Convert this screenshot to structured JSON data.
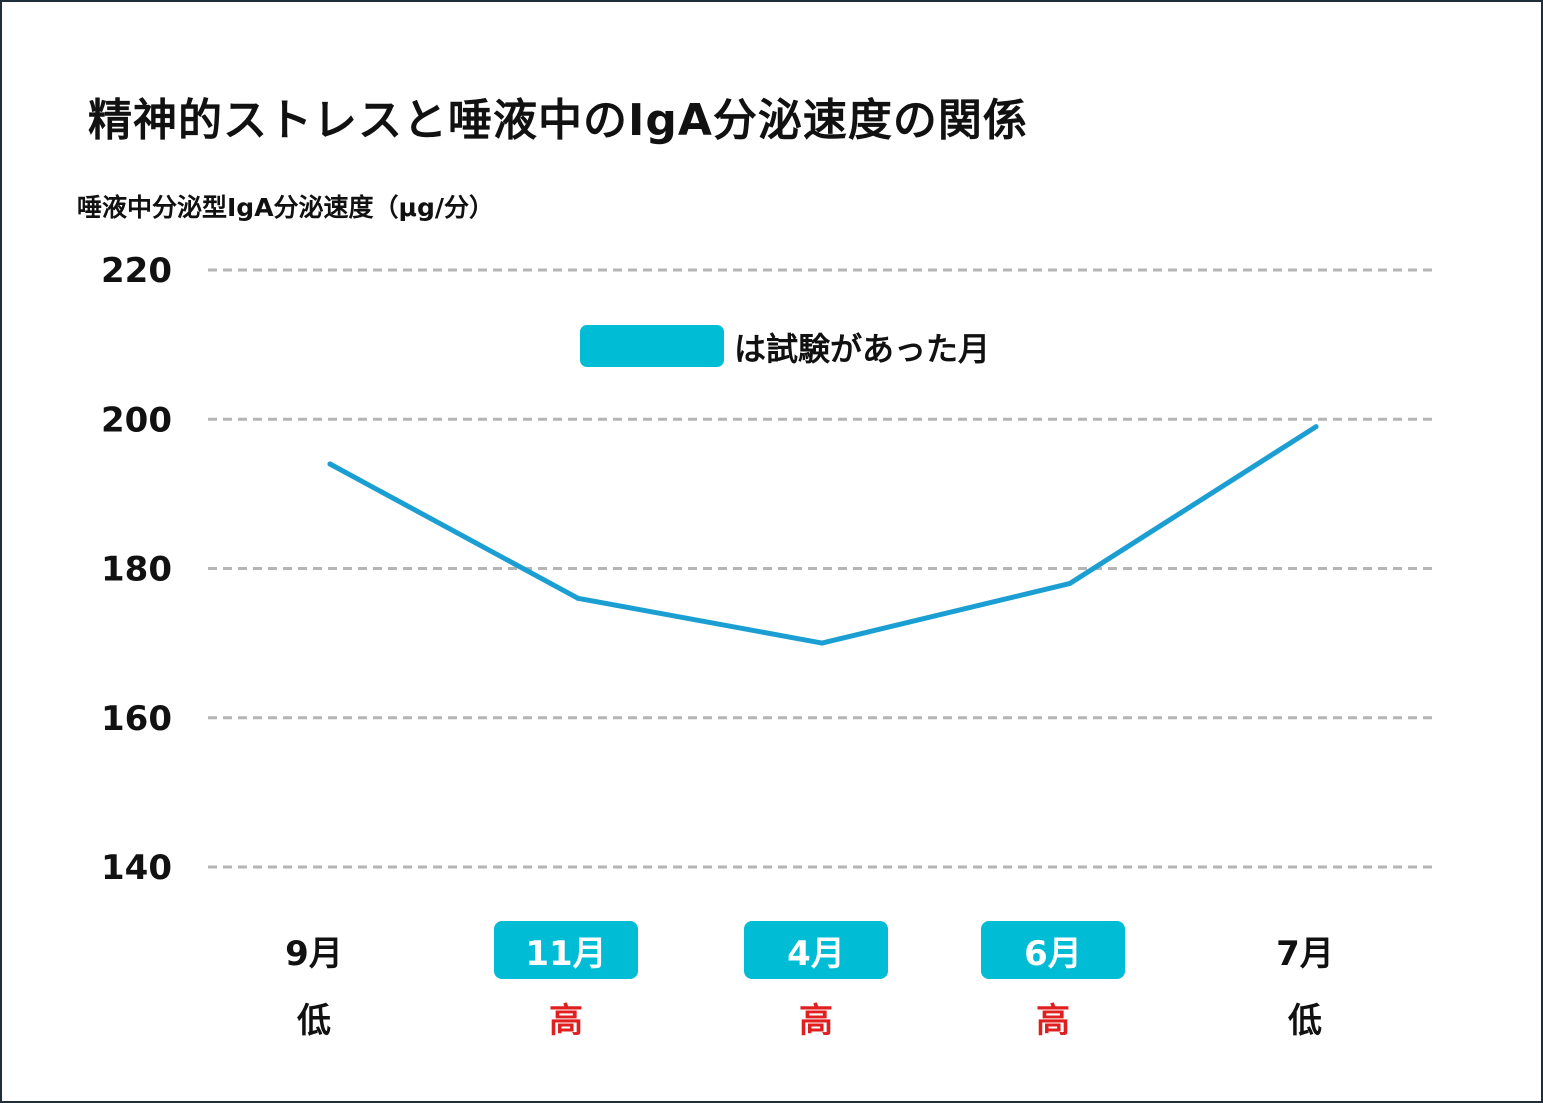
{
  "chart_data": {
    "type": "line",
    "title": "精神的ストレスと唾液中のIgA分泌速度の関係",
    "ylabel": "唾液中分泌型IgA分泌速度（μg/分）",
    "xlabel": "",
    "ylim": [
      140,
      220
    ],
    "yticks": [
      140,
      160,
      180,
      200,
      220
    ],
    "grid": true,
    "categories": [
      "9月",
      "11月",
      "4月",
      "6月",
      "7月"
    ],
    "stress_levels": [
      "低",
      "高",
      "高",
      "高",
      "低"
    ],
    "exam_months": [
      false,
      true,
      true,
      true,
      false
    ],
    "series": [
      {
        "name": "IgA分泌速度",
        "values": [
          194,
          176,
          170,
          178,
          199
        ]
      }
    ],
    "legend": {
      "text": "は試験があった月",
      "placement": "top-center"
    }
  },
  "colors": {
    "line": "#1b9fd3",
    "highlight": "#00bcd4",
    "grid": "#b5b5b5",
    "high_stress": "#e02020",
    "low_stress": "#111111",
    "text": "#111111",
    "highlight_text": "#ffffff"
  }
}
